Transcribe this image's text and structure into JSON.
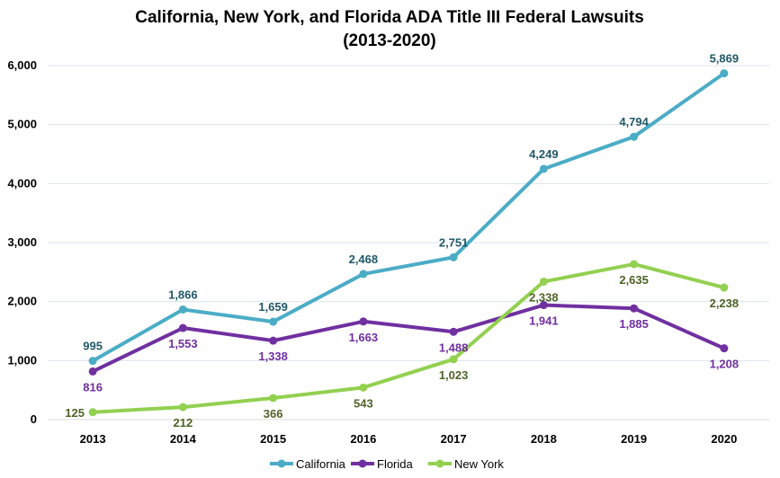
{
  "chart_data": {
    "type": "line",
    "title_line1": "California, New York, and Florida ADA Title III Federal Lawsuits",
    "title_line2": "(2013-2020)",
    "categories": [
      "2013",
      "2014",
      "2015",
      "2016",
      "2017",
      "2018",
      "2019",
      "2020"
    ],
    "ylim": [
      0,
      6000
    ],
    "yticks": [
      "0",
      "1,000",
      "2,000",
      "3,000",
      "4,000",
      "5,000",
      "6,000"
    ],
    "grid": true,
    "legend_position": "bottom",
    "series": [
      {
        "name": "California",
        "color": "#4BACC6",
        "label_color": "#215868",
        "values": [
          995,
          1866,
          1659,
          2468,
          2751,
          4249,
          4794,
          5869
        ],
        "labels": [
          "995",
          "1,866",
          "1,659",
          "2,468",
          "2,751",
          "4,249",
          "4,794",
          "5,869"
        ]
      },
      {
        "name": "Florida",
        "color": "#7030A0",
        "label_color": "#7030A0",
        "values": [
          816,
          1553,
          1338,
          1663,
          1488,
          1941,
          1885,
          1208
        ],
        "labels": [
          "816",
          "1,553",
          "1,338",
          "1,663",
          "1,488",
          "1,941",
          "1,885",
          "1,208"
        ]
      },
      {
        "name": "New York",
        "color": "#92D050",
        "label_color": "#4F6228",
        "values": [
          125,
          212,
          366,
          543,
          1023,
          2338,
          2635,
          2238
        ],
        "labels": [
          "125",
          "212",
          "366",
          "543",
          "1,023",
          "2,338",
          "2,635",
          "2,238"
        ]
      }
    ]
  }
}
